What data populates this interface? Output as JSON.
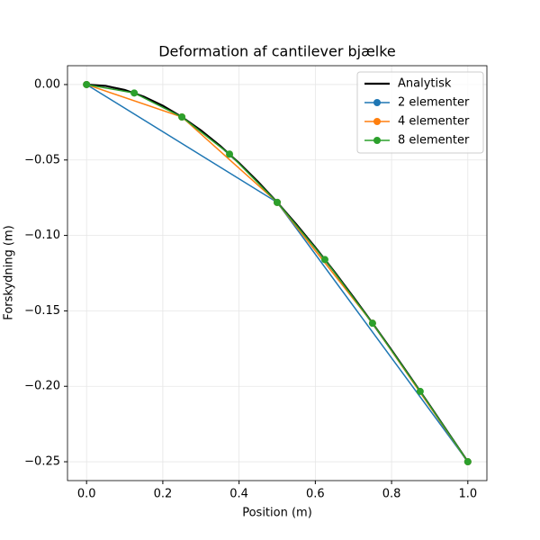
{
  "chart_data": {
    "type": "line",
    "title": "Deformation af cantilever bjælke",
    "x_label": "Position (m)",
    "y_label": "Forskydning (m)",
    "xlim": [
      -0.05,
      1.05
    ],
    "ylim": [
      -0.2625,
      0.0125
    ],
    "xticks": [
      {
        "value": 0,
        "label": "0.0"
      },
      0.2,
      0.4,
      0.6,
      0.8,
      {
        "value": 1,
        "label": "1.0"
      }
    ],
    "yticks": [
      {
        "value": 0,
        "label": "0.00"
      },
      {
        "value": -0.05,
        "label": "−0.05"
      },
      {
        "value": -0.1,
        "label": "−0.10"
      },
      {
        "value": -0.15,
        "label": "−0.15"
      },
      {
        "value": -0.2,
        "label": "−0.20"
      },
      {
        "value": -0.25,
        "label": "−0.25"
      }
    ],
    "grid": true,
    "legend": "upper right",
    "series": [
      {
        "name": "Analytisk",
        "color": "#000000",
        "marker": false,
        "x": [
          0,
          0.05,
          0.1,
          0.15,
          0.2,
          0.25,
          0.3,
          0.35,
          0.4,
          0.45,
          0.5,
          0.55,
          0.6,
          0.65,
          0.7,
          0.75,
          0.8,
          0.85,
          0.9,
          0.95,
          1
        ],
        "values": [
          0,
          -0.0009,
          -0.0036,
          -0.008,
          -0.014,
          -0.0215,
          -0.0304,
          -0.0406,
          -0.052,
          -0.0645,
          -0.0781,
          -0.0926,
          -0.108,
          -0.1241,
          -0.1409,
          -0.1582,
          -0.176,
          -0.1942,
          -0.2126,
          -0.2313,
          -0.25
        ]
      },
      {
        "name": "2 elementer",
        "color": "#1f77b4",
        "marker": true,
        "x": [
          0,
          0.5,
          1
        ],
        "values": [
          0,
          -0.0781,
          -0.25
        ]
      },
      {
        "name": "4 elementer",
        "color": "#ff7f0e",
        "marker": true,
        "x": [
          0,
          0.25,
          0.5,
          0.75,
          1
        ],
        "values": [
          0,
          -0.0215,
          -0.0781,
          -0.1582,
          -0.25
        ]
      },
      {
        "name": "8 elementer",
        "color": "#2ca02c",
        "marker": true,
        "x": [
          0,
          0.125,
          0.25,
          0.375,
          0.5,
          0.625,
          0.75,
          0.875,
          1
        ],
        "values": [
          0,
          -0.0056,
          -0.0215,
          -0.0461,
          -0.0781,
          -0.116,
          -0.1582,
          -0.2034,
          -0.25
        ]
      }
    ]
  }
}
